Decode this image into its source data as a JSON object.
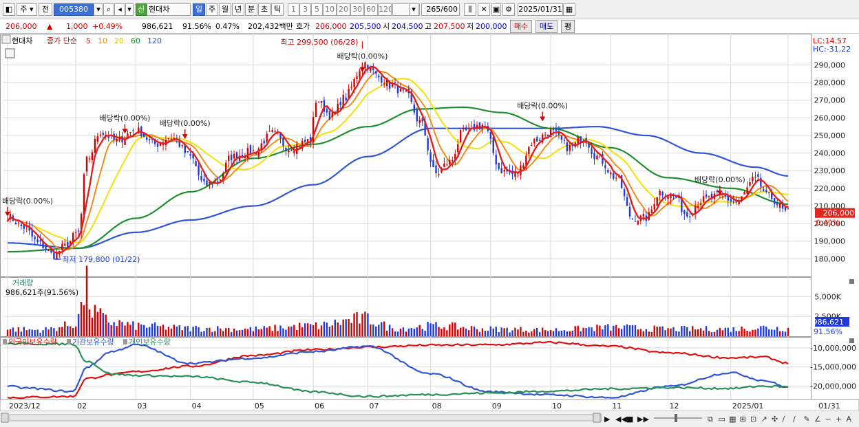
{
  "toolbar": {
    "period_type": "주",
    "prev_label": "전",
    "stock_code": "005380",
    "credit_badge": "신",
    "stock_name": "현대차",
    "periods": [
      "일",
      "주",
      "월",
      "년",
      "분",
      "초",
      "틱"
    ],
    "active_period": "일",
    "intervals": [
      "1",
      "3",
      "5",
      "10",
      "20",
      "30",
      "60",
      "120"
    ],
    "bar_count": "265",
    "bar_total": "/600",
    "date": "2025/01/31"
  },
  "quote": {
    "price": "206,000",
    "change_arrow": "▲",
    "change": "1,000",
    "change_pct": "+0.49%",
    "volume": "986,621",
    "volume_ratio": "91.56%",
    "turnover": "0.47%",
    "amount": "202,432백만",
    "quote_label": "호가",
    "ask": "206,000",
    "bid": "205,500",
    "open_label": "시",
    "open": "204,500",
    "high_label": "고",
    "high": "207,500",
    "low_label": "저",
    "low": "200,000",
    "buy_button": "매수",
    "sell_button": "매도",
    "eval_button": "평"
  },
  "colors": {
    "up": "#d40000",
    "down": "#1f3ad8",
    "ma5": "#e02020",
    "ma10": "#f08c1c",
    "ma20": "#f2e21a",
    "ma60": "#1f8f2e",
    "ma120": "#2f55d4",
    "foreign": "#e01010",
    "institution": "#2f55d4",
    "individual": "#2a8f55",
    "grid": "#d8d8d8"
  },
  "chart_data": [
    {
      "type": "candlestick",
      "title": "현대차",
      "legend": {
        "series": "종가 단순",
        "ma": [
          "5",
          "10",
          "20",
          "60",
          "120"
        ]
      },
      "ylim": [
        170000,
        305000
      ],
      "y_ticks": [
        "290,000",
        "280,000",
        "270,000",
        "260,000",
        "250,000",
        "240,000",
        "230,000",
        "220,000",
        "210,000",
        "200,000",
        "190,000",
        "180,000"
      ],
      "y_tick_values": [
        290000,
        280000,
        270000,
        260000,
        250000,
        240000,
        230000,
        220000,
        210000,
        200000,
        190000,
        180000
      ],
      "x_ticks": [
        "2023/12",
        "02",
        "03",
        "04",
        "05",
        "06",
        "07",
        "08",
        "09",
        "10",
        "11",
        "12",
        "2025/01",
        "01/31"
      ],
      "x_tick_dates": [
        "2023-12-28",
        "2024-02-01",
        "2024-03-04",
        "2024-04-01",
        "2024-05-02",
        "2024-06-03",
        "2024-07-01",
        "2024-08-01",
        "2024-09-02",
        "2024-10-02",
        "2024-11-01",
        "2024-12-02",
        "2025-01-02",
        "2025-01-31"
      ],
      "date_range": [
        "2023-12-28",
        "2025-01-31"
      ],
      "current": {
        "value": 206000,
        "label": "206,000",
        "pct_label": "0.49%"
      },
      "lc_hc": {
        "lc": "LC:14.57",
        "hc": "HC:-31.22"
      },
      "annotations": [
        {
          "text": "최고 299,500 (06/28)",
          "date": "2024-06-28",
          "value": 299500,
          "kind": "max"
        },
        {
          "text": "최저 179,800 (01/22)",
          "date": "2024-01-22",
          "value": 179800,
          "kind": "min"
        },
        {
          "text": "배당락(0.00%)",
          "date": "2023-12-28",
          "value": 204000,
          "kind": "ex_dividend"
        },
        {
          "text": "배당락(0.00%)",
          "date": "2024-02-27",
          "value": 251000,
          "kind": "ex_dividend"
        },
        {
          "text": "배당락(0.00%)",
          "date": "2024-03-28",
          "value": 248000,
          "kind": "ex_dividend"
        },
        {
          "text": "배당락(0.00%)",
          "date": "2024-06-27",
          "value": 286000,
          "kind": "ex_dividend"
        },
        {
          "text": "배당락(0.00%)",
          "date": "2024-09-27",
          "value": 258000,
          "kind": "ex_dividend"
        },
        {
          "text": "배당락(0.00%)",
          "date": "2024-12-27",
          "value": 216000,
          "kind": "ex_dividend"
        }
      ],
      "close_anchors": [
        [
          "2023-12-28",
          204000
        ],
        [
          "2024-01-05",
          198000
        ],
        [
          "2024-01-12",
          189000
        ],
        [
          "2024-01-22",
          182000
        ],
        [
          "2024-01-26",
          187000
        ],
        [
          "2024-02-02",
          195000
        ],
        [
          "2024-02-07",
          236000
        ],
        [
          "2024-02-14",
          252000
        ],
        [
          "2024-02-22",
          247000
        ],
        [
          "2024-03-04",
          253000
        ],
        [
          "2024-03-13",
          245000
        ],
        [
          "2024-03-21",
          249000
        ],
        [
          "2024-04-01",
          238000
        ],
        [
          "2024-04-08",
          222000
        ],
        [
          "2024-04-15",
          224000
        ],
        [
          "2024-04-22",
          238000
        ],
        [
          "2024-05-02",
          241000
        ],
        [
          "2024-05-13",
          251000
        ],
        [
          "2024-05-21",
          243000
        ],
        [
          "2024-05-31",
          247000
        ],
        [
          "2024-06-04",
          270000
        ],
        [
          "2024-06-12",
          261000
        ],
        [
          "2024-06-18",
          271000
        ],
        [
          "2024-06-28",
          291000
        ],
        [
          "2024-07-05",
          283000
        ],
        [
          "2024-07-12",
          278000
        ],
        [
          "2024-07-19",
          273000
        ],
        [
          "2024-07-26",
          258000
        ],
        [
          "2024-08-05",
          228000
        ],
        [
          "2024-08-12",
          235000
        ],
        [
          "2024-08-19",
          252000
        ],
        [
          "2024-08-28",
          256000
        ],
        [
          "2024-09-06",
          230000
        ],
        [
          "2024-09-13",
          228000
        ],
        [
          "2024-09-24",
          247000
        ],
        [
          "2024-10-02",
          252000
        ],
        [
          "2024-10-11",
          243000
        ],
        [
          "2024-10-18",
          249000
        ],
        [
          "2024-10-25",
          238000
        ],
        [
          "2024-11-05",
          226000
        ],
        [
          "2024-11-13",
          203000
        ],
        [
          "2024-11-20",
          203000
        ],
        [
          "2024-11-27",
          218000
        ],
        [
          "2024-12-04",
          216000
        ],
        [
          "2024-12-11",
          205000
        ],
        [
          "2024-12-18",
          213000
        ],
        [
          "2024-12-27",
          216000
        ],
        [
          "2025-01-06",
          212000
        ],
        [
          "2025-01-15",
          225000
        ],
        [
          "2025-01-22",
          215000
        ],
        [
          "2025-01-31",
          206000
        ]
      ],
      "ma_anchors": {
        "ma60": [
          [
            "2023-12-28",
            184000
          ],
          [
            "2024-02-02",
            186000
          ],
          [
            "2024-03-04",
            203000
          ],
          [
            "2024-04-01",
            218000
          ],
          [
            "2024-05-02",
            237000
          ],
          [
            "2024-06-03",
            245000
          ],
          [
            "2024-07-01",
            255000
          ],
          [
            "2024-07-26",
            265000
          ],
          [
            "2024-08-19",
            266000
          ],
          [
            "2024-09-06",
            263000
          ],
          [
            "2024-10-02",
            254000
          ],
          [
            "2024-11-01",
            243000
          ],
          [
            "2024-12-02",
            226000
          ],
          [
            "2025-01-02",
            220000
          ],
          [
            "2025-01-31",
            211000
          ]
        ],
        "ma120": [
          [
            "2023-12-28",
            189000
          ],
          [
            "2024-02-02",
            186000
          ],
          [
            "2024-03-04",
            195000
          ],
          [
            "2024-04-01",
            202000
          ],
          [
            "2024-05-02",
            210000
          ],
          [
            "2024-06-03",
            222000
          ],
          [
            "2024-07-01",
            238000
          ],
          [
            "2024-08-01",
            254000
          ],
          [
            "2024-09-02",
            254000
          ],
          [
            "2024-10-02",
            254000
          ],
          [
            "2024-10-25",
            255000
          ],
          [
            "2024-11-20",
            250000
          ],
          [
            "2024-12-18",
            240000
          ],
          [
            "2025-01-15",
            232000
          ],
          [
            "2025-01-31",
            227000
          ]
        ]
      }
    },
    {
      "type": "bar",
      "title": "거래량",
      "readout": "986,621주(91.56%)",
      "ylim": [
        0,
        6500
      ],
      "y_ticks": [
        "5,000K",
        "2,500K"
      ],
      "y_tick_values": [
        5000,
        2500
      ],
      "current_label": "986,621",
      "current_pct_label": "91.56%",
      "volume_anchors": [
        [
          "2023-12-28",
          900
        ],
        [
          "2024-01-15",
          800
        ],
        [
          "2024-01-31",
          1400
        ],
        [
          "2024-02-05",
          3500
        ],
        [
          "2024-02-07",
          6200
        ],
        [
          "2024-02-09",
          3000
        ],
        [
          "2024-02-20",
          1800
        ],
        [
          "2024-03-04",
          1300
        ],
        [
          "2024-04-01",
          1000
        ],
        [
          "2024-05-02",
          900
        ],
        [
          "2024-06-03",
          1300
        ],
        [
          "2024-06-28",
          2200
        ],
        [
          "2024-07-15",
          1000
        ],
        [
          "2024-08-05",
          1300
        ],
        [
          "2024-09-02",
          900
        ],
        [
          "2024-10-02",
          800
        ],
        [
          "2024-11-04",
          1100
        ],
        [
          "2024-12-02",
          900
        ],
        [
          "2025-01-02",
          900
        ],
        [
          "2025-01-20",
          1100
        ],
        [
          "2025-01-31",
          990
        ]
      ]
    },
    {
      "type": "line",
      "legend": [
        "외국인보유수량",
        "기관보유수량",
        "개인보유수량"
      ],
      "ylim": [
        -23500000,
        -7500000
      ],
      "y_ticks": [
        "-10,000,000",
        "-15,000,000",
        "-20,000,000"
      ],
      "y_tick_values": [
        -10000000,
        -15000000,
        -20000000
      ],
      "series": [
        {
          "name": "외국인보유수량",
          "anchors": [
            [
              "2023-12-28",
              -23000000
            ],
            [
              "2024-01-31",
              -22700000
            ],
            [
              "2024-02-07",
              -18000000
            ],
            [
              "2024-02-20",
              -17000000
            ],
            [
              "2024-03-04",
              -16200000
            ],
            [
              "2024-04-01",
              -14800000
            ],
            [
              "2024-05-02",
              -12000000
            ],
            [
              "2024-06-03",
              -10500000
            ],
            [
              "2024-07-01",
              -9800000
            ],
            [
              "2024-08-01",
              -9300000
            ],
            [
              "2024-09-02",
              -9200000
            ],
            [
              "2024-10-02",
              -8600000
            ],
            [
              "2024-11-01",
              -9600000
            ],
            [
              "2024-12-02",
              -11300000
            ],
            [
              "2025-01-02",
              -12600000
            ],
            [
              "2025-01-20",
              -12400000
            ],
            [
              "2025-01-31",
              -14000000
            ]
          ]
        },
        {
          "name": "기관보유수량",
          "anchors": [
            [
              "2023-12-28",
              -20000000
            ],
            [
              "2024-01-05",
              -20500000
            ],
            [
              "2024-01-31",
              -21400000
            ],
            [
              "2024-02-07",
              -15000000
            ],
            [
              "2024-02-20",
              -11000000
            ],
            [
              "2024-03-04",
              -9200000
            ],
            [
              "2024-04-01",
              -14000000
            ],
            [
              "2024-05-02",
              -12700000
            ],
            [
              "2024-06-03",
              -11000000
            ],
            [
              "2024-07-01",
              -9600000
            ],
            [
              "2024-08-01",
              -16800000
            ],
            [
              "2024-09-02",
              -21500000
            ],
            [
              "2024-10-02",
              -22300000
            ],
            [
              "2024-11-01",
              -23000000
            ],
            [
              "2024-12-02",
              -20100000
            ],
            [
              "2025-01-02",
              -16500000
            ],
            [
              "2025-01-20",
              -18500000
            ],
            [
              "2025-01-31",
              -20300000
            ]
          ]
        },
        {
          "name": "개인보유수량",
          "anchors": [
            [
              "2023-12-28",
              -8900000
            ],
            [
              "2024-01-31",
              -9000000
            ],
            [
              "2024-02-07",
              -13500000
            ],
            [
              "2024-02-20",
              -16800000
            ],
            [
              "2024-03-04",
              -17200000
            ],
            [
              "2024-04-01",
              -17500000
            ],
            [
              "2024-05-02",
              -19000000
            ],
            [
              "2024-06-03",
              -21500000
            ],
            [
              "2024-07-01",
              -22700000
            ],
            [
              "2024-08-01",
              -22200000
            ],
            [
              "2024-09-02",
              -21800000
            ],
            [
              "2024-10-02",
              -21300000
            ],
            [
              "2024-11-01",
              -20700000
            ],
            [
              "2024-12-02",
              -20400000
            ],
            [
              "2025-01-02",
              -20600000
            ],
            [
              "2025-01-20",
              -20000000
            ],
            [
              "2025-01-31",
              -20200000
            ]
          ]
        }
      ]
    }
  ]
}
